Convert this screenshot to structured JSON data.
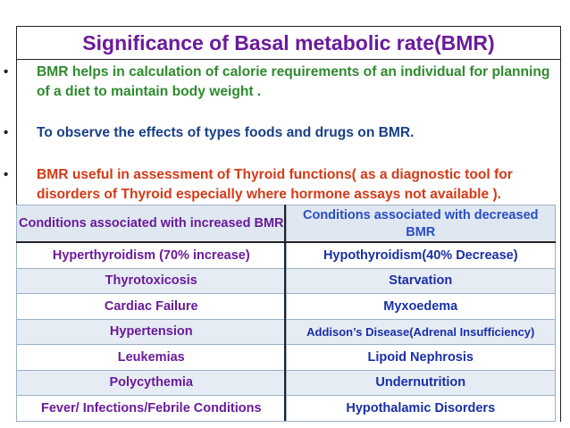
{
  "title": "Significance of Basal metabolic rate(BMR)",
  "bullets": [
    {
      "marker": "•",
      "text": "BMR helps in calculation of calorie requirements of an individual for planning of a diet to maintain body weight ."
    },
    {
      "marker": "•",
      "text": "To observe the effects of types foods and drugs on BMR."
    },
    {
      "marker": "•",
      "text": "BMR useful in assessment of Thyroid functions( as a diagnostic tool for disorders of Thyroid especially where hormone assays not available )."
    }
  ],
  "table": {
    "headers": [
      "Conditions associated with increased BMR",
      "Conditions associated with decreased BMR"
    ],
    "rows": [
      [
        "Hyperthyroidism (70% increase)",
        "Hypothyroidism(40% Decrease)"
      ],
      [
        "Thyrotoxicosis",
        "Starvation"
      ],
      [
        "Cardiac Failure",
        "Myxoedema"
      ],
      [
        "Hypertension",
        "Addison’s Disease(Adrenal Insufficiency)"
      ],
      [
        "Leukemias",
        "Lipoid Nephrosis"
      ],
      [
        "Polycythemia",
        "Undernutrition"
      ],
      [
        "Fever/ Infections/Febrile Conditions",
        "Hypothalamic Disorders"
      ]
    ]
  },
  "colors": {
    "title": "#6a1b9a",
    "bullet1": "#2e8b2e",
    "bullet2": "#1a3f8a",
    "bullet3": "#d43a16",
    "increased_column": "#6a1b9a",
    "decreased_column": "#1a2fa8",
    "row_alt_bg": "#e6ecf4",
    "header_bg": "#dfe7f1"
  }
}
